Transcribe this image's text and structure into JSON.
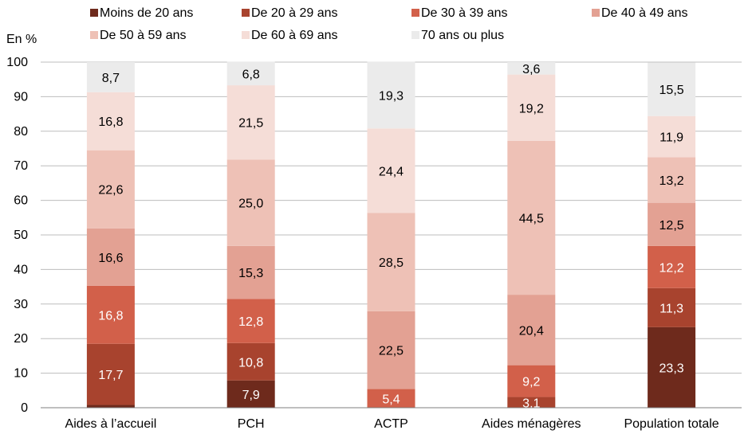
{
  "chart_data": {
    "type": "bar",
    "stacked": true,
    "unit_label": "En %",
    "categories": [
      "Aides à l’accueil",
      "PCH",
      "ACTP",
      "Aides ménagères",
      "Population totale"
    ],
    "ylim": [
      0,
      100
    ],
    "yticks": [
      "0",
      "10",
      "20",
      "30",
      "40",
      "50",
      "60",
      "70",
      "80",
      "90",
      "100"
    ],
    "grid": true,
    "legend_position": "top",
    "series": [
      {
        "name": "Moins de 20 ans",
        "color": "#6e2a1c",
        "values": [
          0.8,
          7.9,
          0,
          0,
          23.3
        ],
        "labels": [
          "",
          "7,9",
          "",
          "",
          "23,3"
        ]
      },
      {
        "name": "De 20 à 29 ans",
        "color": "#a8432e",
        "values": [
          17.7,
          10.8,
          0,
          3.1,
          11.3
        ],
        "labels": [
          "17,7",
          "10,8",
          "",
          "3,1",
          "11,3"
        ]
      },
      {
        "name": "De 30 à 39 ans",
        "color": "#d2604a",
        "values": [
          16.8,
          12.8,
          5.4,
          9.2,
          12.2
        ],
        "labels": [
          "16,8",
          "12,8",
          "5,4",
          "9,2",
          "12,2"
        ]
      },
      {
        "name": "De 40 à 49 ans",
        "color": "#e3a193",
        "values": [
          16.6,
          15.3,
          22.5,
          20.4,
          12.5
        ],
        "labels": [
          "16,6",
          "15,3",
          "22,5",
          "20,4",
          "12,5"
        ]
      },
      {
        "name": "De 50 à 59 ans",
        "color": "#eec1b6",
        "values": [
          22.6,
          25.0,
          28.5,
          44.5,
          13.2
        ],
        "labels": [
          "22,6",
          "25,0",
          "28,5",
          "44,5",
          "13,2"
        ]
      },
      {
        "name": "De 60 à 69 ans",
        "color": "#f5ddd7",
        "values": [
          16.8,
          21.5,
          24.4,
          19.2,
          11.9
        ],
        "labels": [
          "16,8",
          "21,5",
          "24,4",
          "19,2",
          "11,9"
        ]
      },
      {
        "name": "70 ans ou plus",
        "color": "#ebebeb",
        "values": [
          8.7,
          6.8,
          19.3,
          3.6,
          15.5
        ],
        "labels": [
          "8,7",
          "6,8",
          "19,3",
          "3,6",
          "15,5"
        ]
      }
    ],
    "label_colors": [
      "#ffffff",
      "#ffffff",
      "#ffffff",
      "#000000",
      "#000000",
      "#000000",
      "#000000"
    ]
  }
}
